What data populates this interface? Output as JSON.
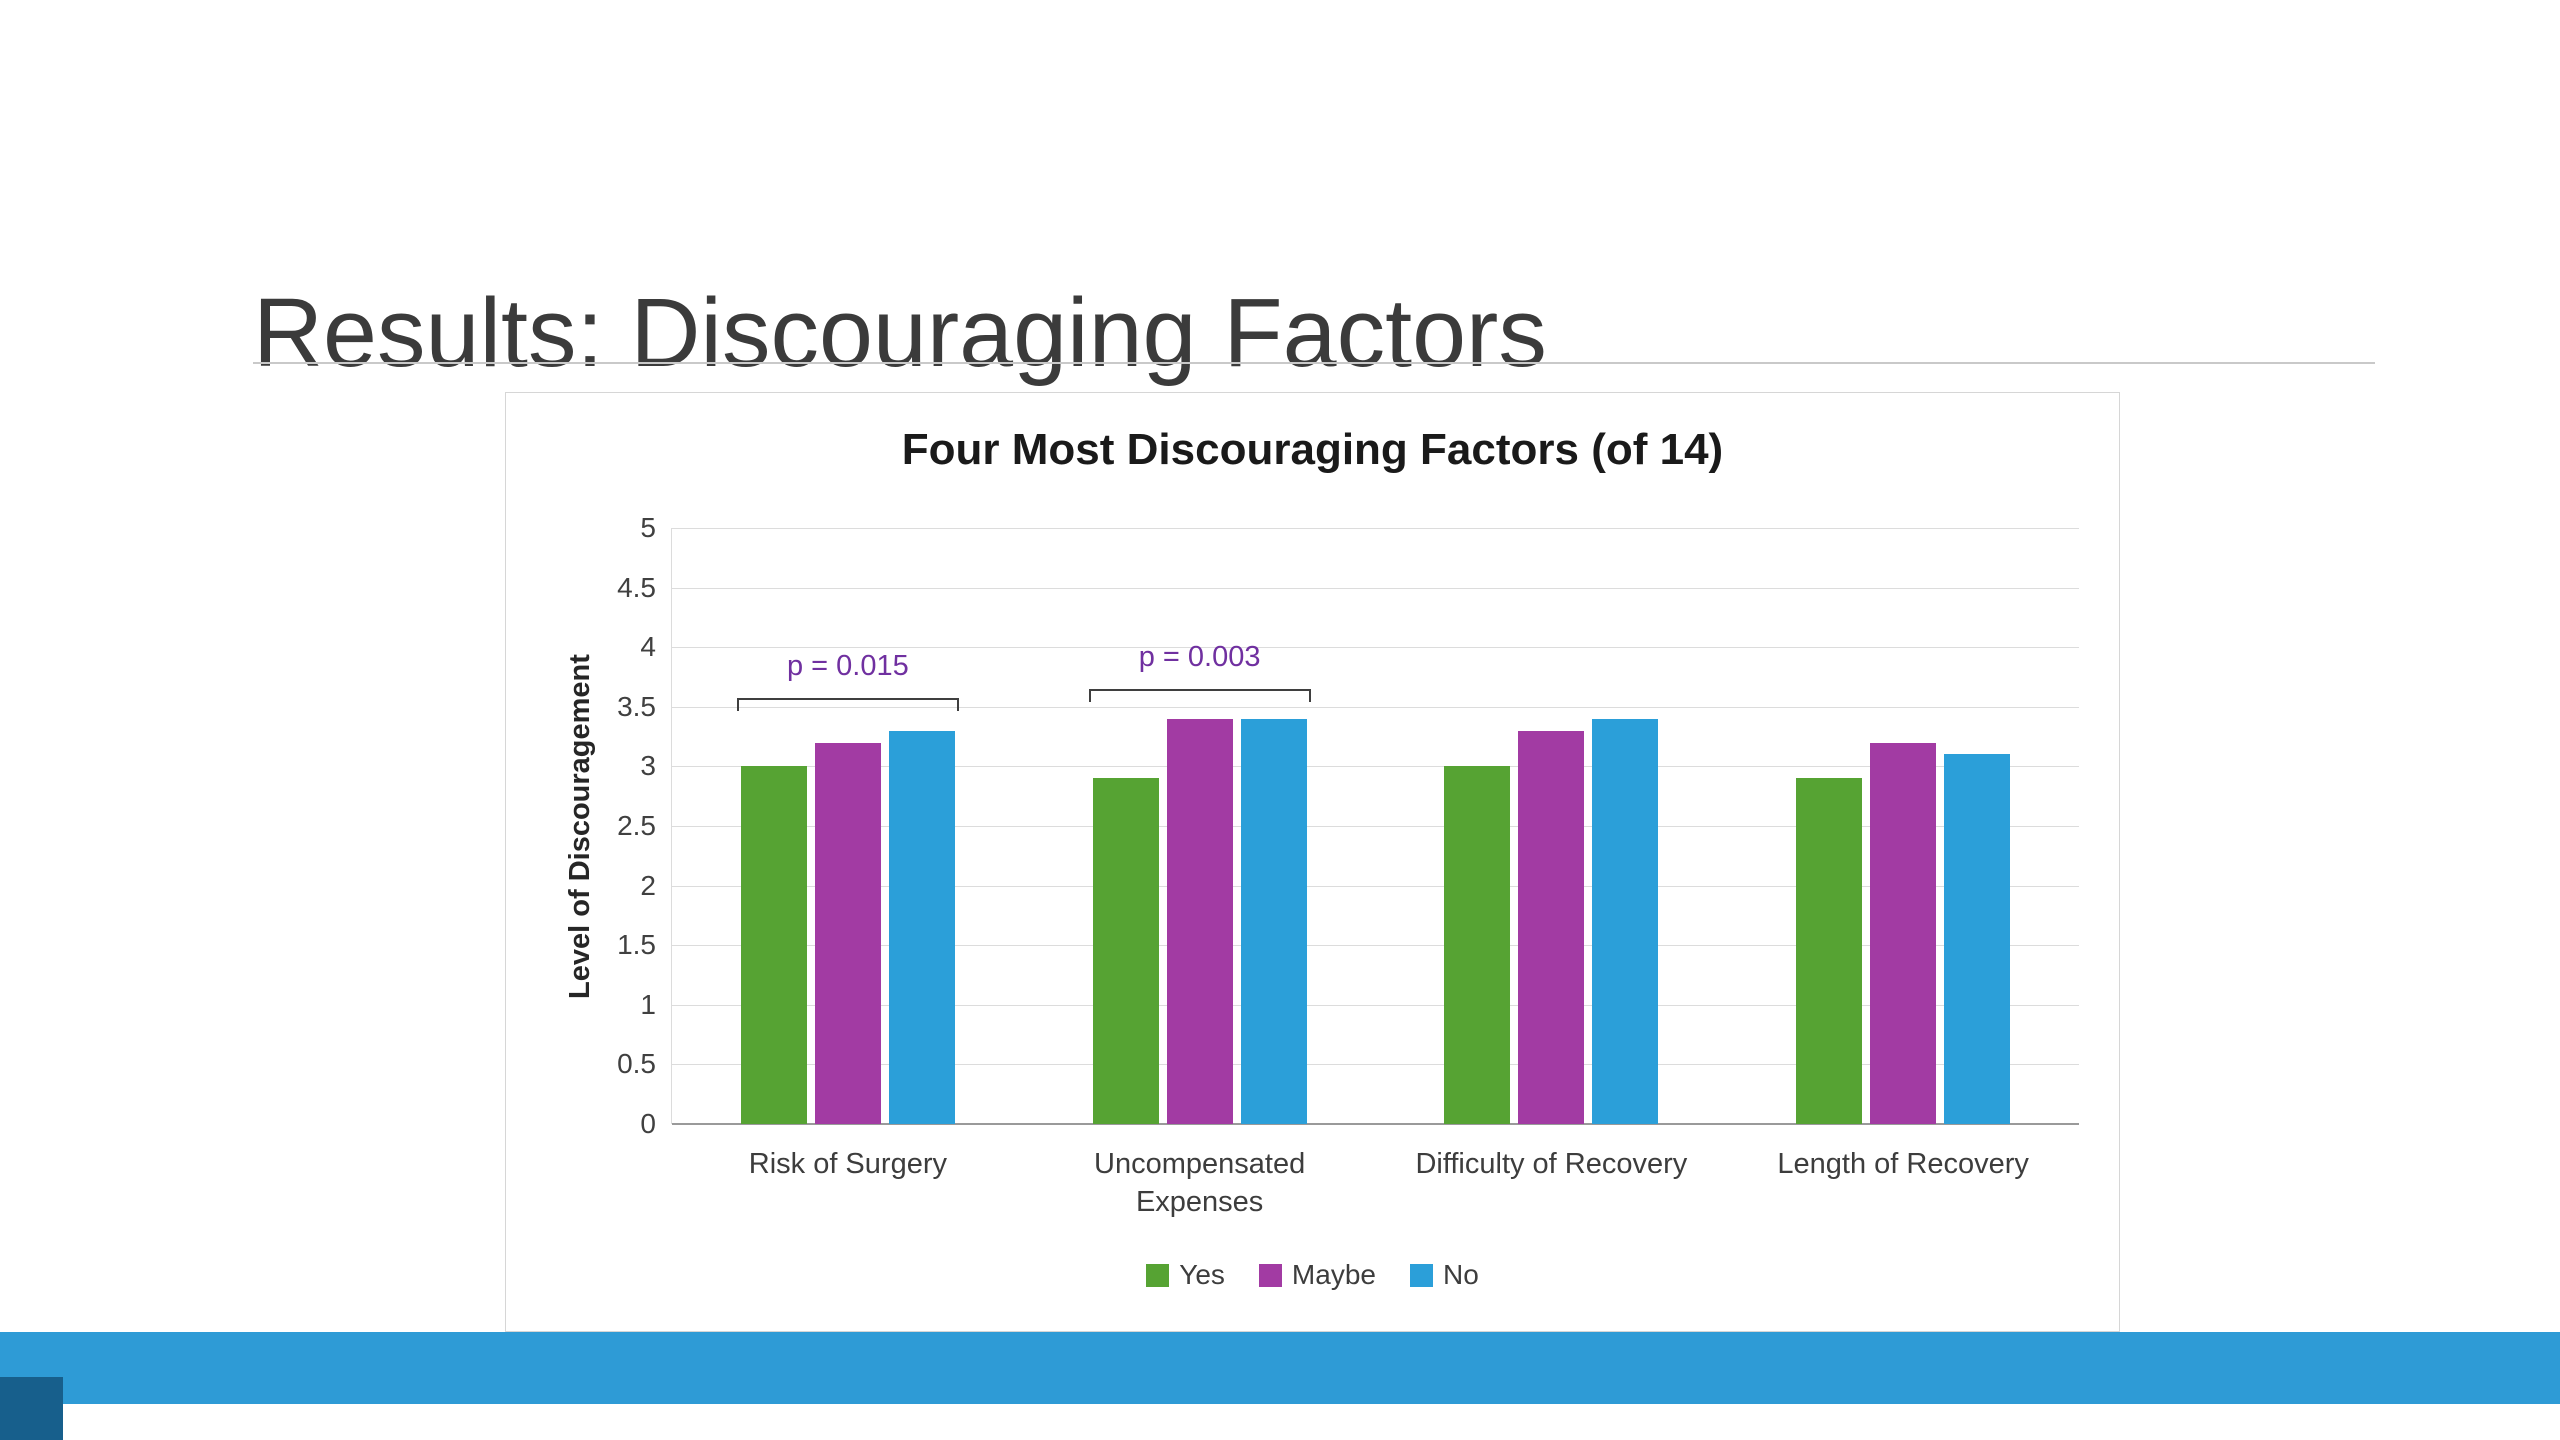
{
  "slide": {
    "title": "Results: Discouraging Factors"
  },
  "chart_data": {
    "type": "bar",
    "title": "Four Most Discouraging Factors (of 14)",
    "xlabel": "",
    "ylabel": "Level of Discouragement",
    "ylim": [
      0,
      5
    ],
    "ytick_step": 0.5,
    "yticks": [
      "0",
      "0.5",
      "1",
      "1.5",
      "2",
      "2.5",
      "3",
      "3.5",
      "4",
      "4.5",
      "5"
    ],
    "grid": true,
    "legend_position": "bottom",
    "categories": [
      "Risk of Surgery",
      "Uncompensated\nExpenses",
      "Difficulty of Recovery",
      "Length of Recovery"
    ],
    "series": [
      {
        "name": "Yes",
        "color": "#56A333",
        "values": [
          3.0,
          2.9,
          3.0,
          2.9
        ]
      },
      {
        "name": "Maybe",
        "color": "#A23BA3",
        "values": [
          3.2,
          3.4,
          3.3,
          3.2
        ]
      },
      {
        "name": "No",
        "color": "#2B9FD9",
        "values": [
          3.3,
          3.4,
          3.4,
          3.1
        ]
      }
    ],
    "annotations": [
      {
        "text": "p = 0.015",
        "category_index": 0,
        "y": 3.57,
        "color": "#7030A0"
      },
      {
        "text": "p = 0.003",
        "category_index": 1,
        "y": 3.65,
        "color": "#7030A0"
      }
    ]
  },
  "footer": {
    "band_color": "#2E9BD6",
    "corner_color": "#175F8C"
  }
}
